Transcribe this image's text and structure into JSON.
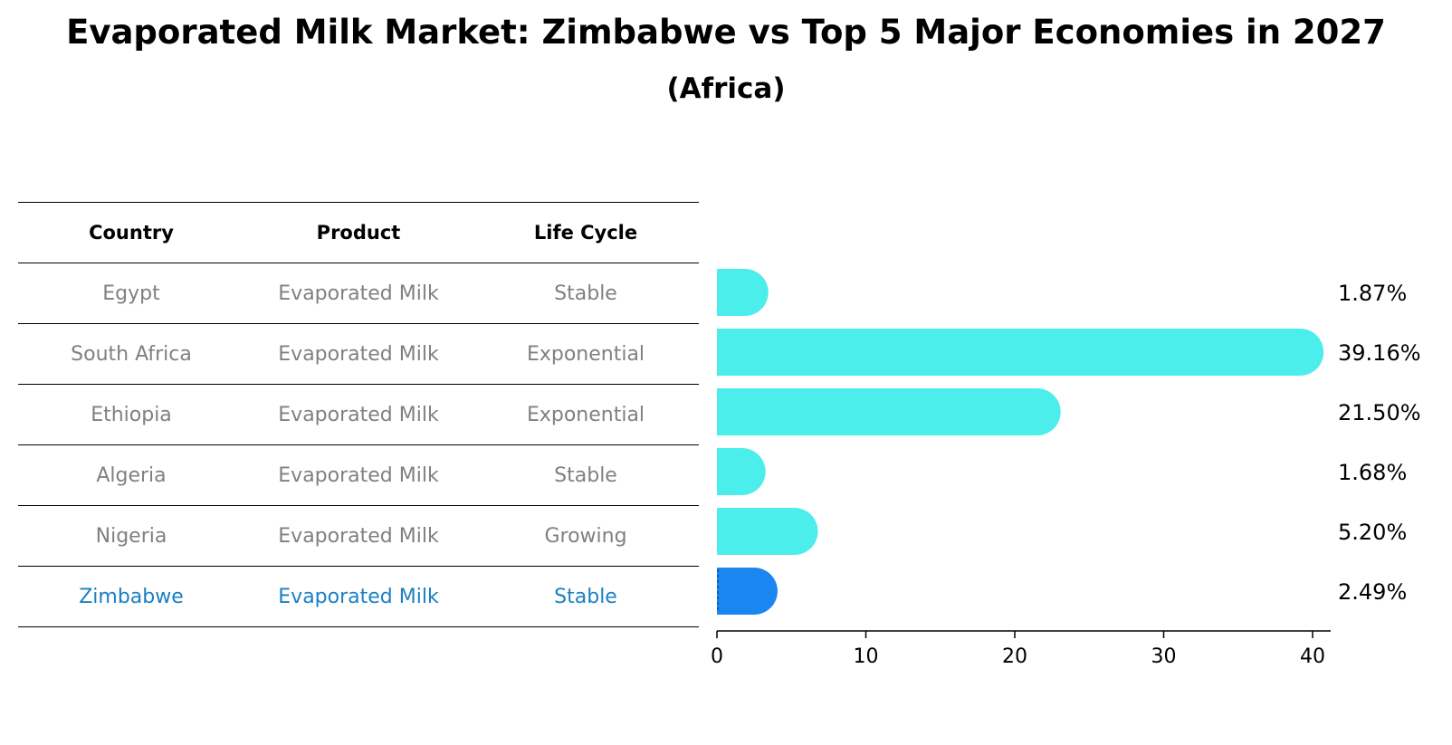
{
  "title": "Evaporated Milk Market: Zimbabwe vs Top 5 Major Economies in 2027",
  "subtitle": "(Africa)",
  "table": {
    "headers": [
      "Country",
      "Product",
      "Life Cycle"
    ],
    "rows": [
      [
        "Egypt",
        "Evaporated Milk",
        "Stable"
      ],
      [
        "South Africa",
        "Evaporated Milk",
        "Exponential"
      ],
      [
        "Ethiopia",
        "Evaporated Milk",
        "Exponential"
      ],
      [
        "Algeria",
        "Evaporated Milk",
        "Stable"
      ],
      [
        "Nigeria",
        "Evaporated Milk",
        "Growing"
      ],
      [
        "Zimbabwe",
        "Evaporated Milk",
        "Stable"
      ]
    ],
    "highlight_row": 5
  },
  "colors": {
    "bar": "#4beeea",
    "highlight_bar": "#1a86f0",
    "highlight_text": "#1a80c4",
    "row_text": "#808080"
  },
  "chart_data": {
    "type": "bar",
    "orientation": "horizontal",
    "categories": [
      "Egypt",
      "South Africa",
      "Ethiopia",
      "Algeria",
      "Nigeria",
      "Zimbabwe"
    ],
    "values": [
      1.87,
      39.16,
      21.5,
      1.68,
      5.2,
      2.49
    ],
    "labels": [
      "1.87%",
      "39.16%",
      "21.50%",
      "1.68%",
      "5.20%",
      "2.49%"
    ],
    "highlight": "Zimbabwe",
    "xlim": [
      0,
      41
    ],
    "xticks": [
      0,
      10,
      20,
      30,
      40
    ],
    "xlabel": "",
    "ylabel": ""
  }
}
